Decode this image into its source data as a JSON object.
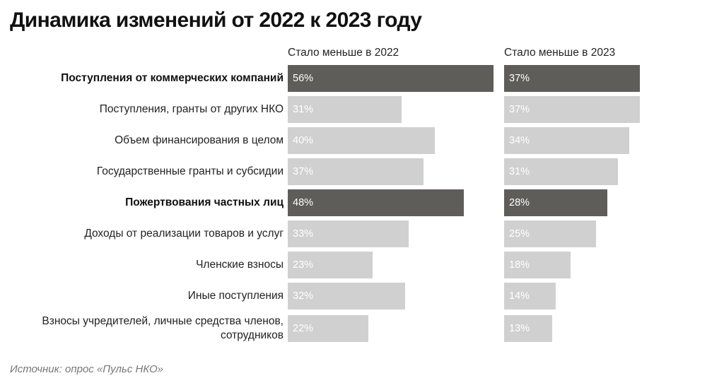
{
  "title": "Динамика изменений от 2022 к 2023 году",
  "source": "Источник: опрос «Пульс НКО»",
  "colors": {
    "highlight": "#5f5d5a",
    "normal": "#d0d0d0",
    "bar_text": "#ffffff"
  },
  "chart_data": {
    "type": "bar",
    "orientation": "horizontal",
    "title": "Динамика изменений от 2022 к 2023 году",
    "categories": [
      "Поступления от коммерческих компаний",
      "Поступления, гранты от других НКО",
      "Объем финансирования в целом",
      "Государственные гранты и субсидии",
      "Пожертвования частных лиц",
      "Доходы от реализации товаров и услуг",
      "Членские взносы",
      "Иные поступления",
      "Взносы учредителей, личные средства членов, сотрудников"
    ],
    "category_lines": [
      [
        "Поступления от коммерческих компаний"
      ],
      [
        "Поступления, гранты от других НКО"
      ],
      [
        "Объем финансирования в целом"
      ],
      [
        "Государственные гранты и субсидии"
      ],
      [
        "Пожертвования частных лиц"
      ],
      [
        "Доходы от реализации товаров и услуг"
      ],
      [
        "Членские взносы"
      ],
      [
        "Иные поступления"
      ],
      [
        "Взносы учредителей, личные средства членов,",
        "сотрудников"
      ]
    ],
    "highlighted": [
      true,
      false,
      false,
      false,
      true,
      false,
      false,
      false,
      false
    ],
    "series": [
      {
        "name": "Стало меньше в 2022",
        "values": [
          56,
          31,
          40,
          37,
          48,
          33,
          23,
          32,
          22
        ],
        "labels": [
          "56%",
          "31%",
          "40%",
          "37%",
          "48%",
          "33%",
          "23%",
          "32%",
          "22%"
        ]
      },
      {
        "name": "Стало меньше в 2023",
        "values": [
          37,
          37,
          34,
          31,
          28,
          25,
          18,
          14,
          13
        ],
        "labels": [
          "37%",
          "37%",
          "34%",
          "31%",
          "28%",
          "25%",
          "18%",
          "14%",
          "13%"
        ]
      }
    ],
    "unit": "%",
    "grid": false
  }
}
